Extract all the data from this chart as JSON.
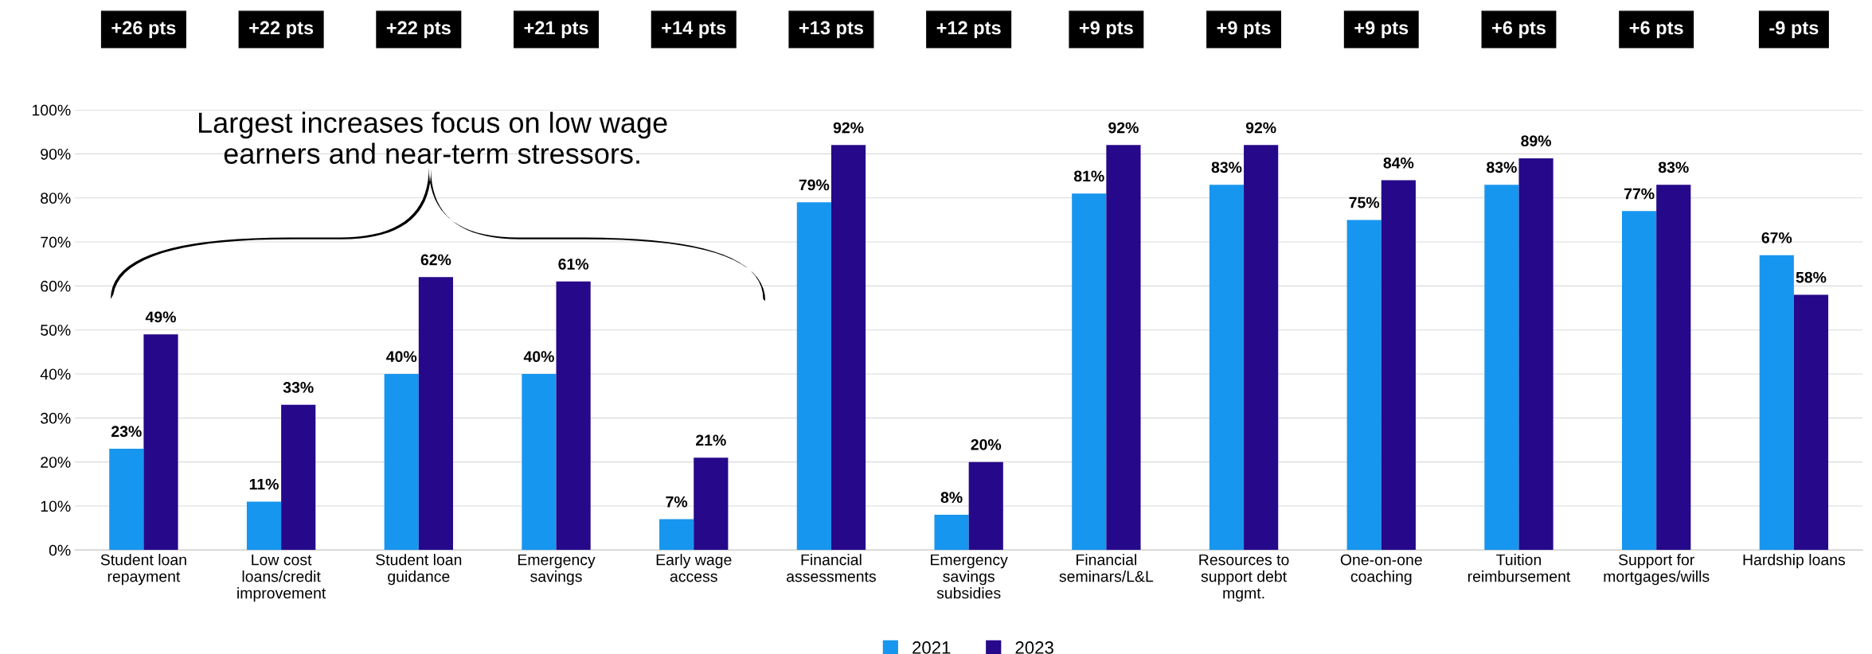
{
  "chart_data": {
    "type": "bar",
    "categories": [
      "Student loan repayment",
      "Low cost loans/credit improvement",
      "Student loan guidance",
      "Emergency savings",
      "Early wage access",
      "Financial assessments",
      "Emergency savings subsidies",
      "Financial seminars/L&L",
      "Resources to support debt mgmt.",
      "One-on-one coaching",
      "Tuition reimbursement",
      "Support for mortgages/wills",
      "Hardship loans"
    ],
    "series": [
      {
        "name": "2021",
        "color": "#1796ef",
        "values": [
          23,
          11,
          40,
          40,
          7,
          79,
          8,
          81,
          83,
          75,
          83,
          77,
          67
        ],
        "value_labels": [
          "23%",
          "11%",
          "40%",
          "40%",
          "7%",
          "79%",
          "8%",
          "81%",
          "83%",
          "75%",
          "83%",
          "77%",
          "67%"
        ]
      },
      {
        "name": "2023",
        "color": "#26088a",
        "values": [
          49,
          33,
          62,
          61,
          21,
          92,
          20,
          92,
          92,
          84,
          89,
          83,
          58
        ],
        "value_labels": [
          "49%",
          "33%",
          "62%",
          "61%",
          "21%",
          "92%",
          "20%",
          "92%",
          "92%",
          "84%",
          "89%",
          "83%",
          "58%"
        ]
      }
    ],
    "ylim": [
      0,
      100
    ],
    "yticks": [
      {
        "value": 0,
        "label": "0%"
      },
      {
        "value": 10,
        "label": "10%"
      },
      {
        "value": 20,
        "label": "20%"
      },
      {
        "value": 30,
        "label": "30%"
      },
      {
        "value": 40,
        "label": "40%"
      },
      {
        "value": 50,
        "label": "50%"
      },
      {
        "value": 60,
        "label": "60%"
      },
      {
        "value": 70,
        "label": "70%"
      },
      {
        "value": 80,
        "label": "80%"
      },
      {
        "value": 90,
        "label": "90%"
      },
      {
        "value": 100,
        "label": "100%"
      }
    ],
    "grid": "y",
    "legend": "bottom",
    "annotations": [
      "Largest increases focus on low wage earners and near-term stressors.",
      "+26 pts",
      "+22 pts",
      "+22 pts",
      "+21 pts",
      "+14 pts",
      "+13 pts",
      "+12 pts",
      "+9 pts",
      "+9 pts",
      "+9 pts",
      "+6 pts",
      "+6 pts",
      "-9 pts"
    ]
  }
}
